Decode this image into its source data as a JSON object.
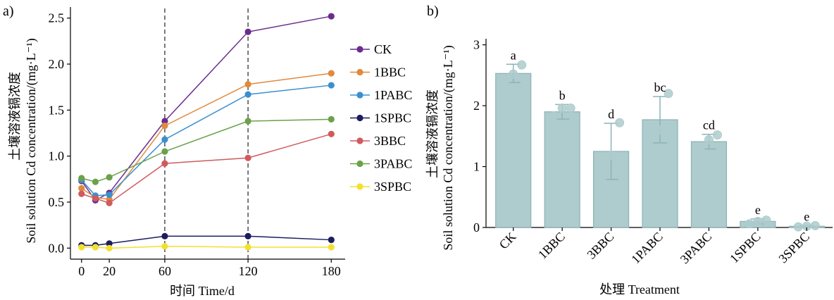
{
  "chart_data": [
    {
      "panel_label": "a)",
      "type": "line",
      "xlabel": "时间 Time/d",
      "ylabel_cn": "土壤溶液镉浓度",
      "ylabel_en": "Soil solution Cd concentration/(mg·L⁻¹)",
      "x": [
        0,
        10,
        20,
        60,
        120,
        180
      ],
      "x_ticks": [
        "0",
        "20",
        "60",
        "120",
        "180"
      ],
      "y_ticks": [
        "0.0",
        "0.5",
        "1.0",
        "1.5",
        "2.0",
        "2.5"
      ],
      "xlim": [
        -8,
        190
      ],
      "ylim": [
        -0.12,
        2.62
      ],
      "vlines": [
        60,
        120
      ],
      "legend_position": "right",
      "series": [
        {
          "name": "CK",
          "color": "#6a2c8e",
          "values": [
            0.73,
            0.52,
            0.6,
            1.38,
            2.35,
            2.52
          ]
        },
        {
          "name": "1BBC",
          "color": "#e08a3c",
          "values": [
            0.65,
            0.55,
            0.53,
            1.33,
            1.78,
            1.9
          ]
        },
        {
          "name": "1PABC",
          "color": "#3a8fd0",
          "values": [
            0.74,
            0.57,
            0.58,
            1.18,
            1.67,
            1.77
          ]
        },
        {
          "name": "1SPBC",
          "color": "#1c1c5e",
          "values": [
            0.03,
            0.03,
            0.05,
            0.13,
            0.13,
            0.09
          ]
        },
        {
          "name": "3BBC",
          "color": "#d05a5e",
          "values": [
            0.59,
            0.54,
            0.49,
            0.92,
            0.98,
            1.24
          ]
        },
        {
          "name": "3PABC",
          "color": "#6aa14a",
          "values": [
            0.76,
            0.72,
            0.77,
            1.05,
            1.38,
            1.4
          ]
        },
        {
          "name": "3SPBC",
          "color": "#f2e030",
          "values": [
            0.01,
            0.01,
            0.0,
            0.02,
            0.01,
            0.01
          ]
        }
      ]
    },
    {
      "panel_label": "b)",
      "type": "bar",
      "xlabel": "处理 Treatment",
      "ylabel_cn": "土壤溶液镉浓度",
      "ylabel_en": "Soil solution Cd concentration/(mg·L⁻¹)",
      "categories": [
        "CK",
        "1BBC",
        "3BBC",
        "1PABC",
        "3PABC",
        "1SPBC",
        "3SPBC"
      ],
      "values": [
        2.53,
        1.9,
        1.25,
        1.77,
        1.41,
        0.1,
        0.02
      ],
      "errors": [
        0.15,
        0.12,
        0.46,
        0.38,
        0.12,
        0.04,
        0.01
      ],
      "letters": [
        "a",
        "b",
        "d",
        "bc",
        "cd",
        "e",
        "e"
      ],
      "points": [
        [
          2.39,
          2.52,
          2.67
        ],
        [
          1.83,
          1.96,
          1.96
        ],
        [
          0.83,
          1.18,
          1.72
        ],
        [
          1.5,
          1.6,
          2.2
        ],
        [
          1.27,
          1.44,
          1.52
        ],
        [
          0.06,
          0.1,
          0.12
        ],
        [
          0.01,
          0.02,
          0.03
        ]
      ],
      "y_ticks": [
        "0",
        "1",
        "2",
        "3"
      ],
      "ylim": [
        0,
        3.1
      ],
      "bar_color": "#aecbcd"
    }
  ]
}
